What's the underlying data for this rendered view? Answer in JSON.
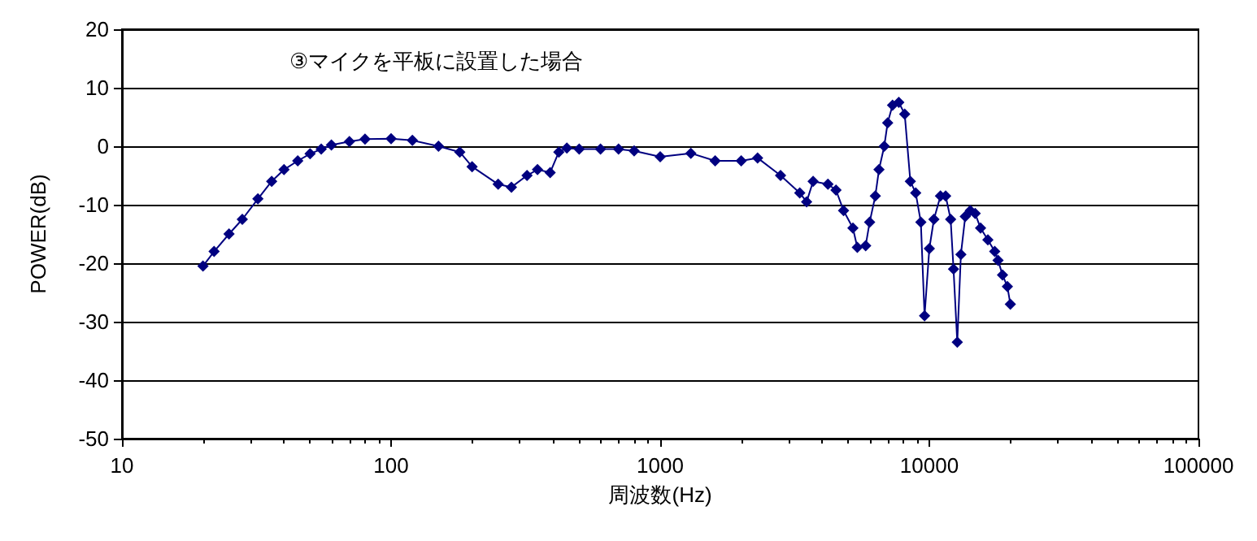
{
  "chart_data": {
    "type": "line",
    "title": "③マイクを平板に設置した場合",
    "xlabel": "周波数(Hz)",
    "ylabel": "POWER(dB)",
    "log": "x",
    "xlim": [
      10,
      100000
    ],
    "xticks": [
      10,
      100,
      1000,
      10000,
      100000
    ],
    "ylim": [
      -50,
      20
    ],
    "yticks": [
      -50,
      -40,
      -30,
      -20,
      -10,
      0,
      10,
      20
    ],
    "grid": "y",
    "marker": "diamond",
    "line_style": "solid",
    "series": [
      {
        "color": "#000080",
        "x": [
          20,
          22,
          25,
          28,
          32,
          36,
          40,
          45,
          50,
          55,
          60,
          70,
          80,
          100,
          120,
          150,
          180,
          200,
          250,
          280,
          320,
          350,
          390,
          420,
          450,
          500,
          600,
          700,
          800,
          1000,
          1300,
          1600,
          2000,
          2300,
          2800,
          3300,
          3500,
          3700,
          4200,
          4500,
          4800,
          5200,
          5400,
          5800,
          6000,
          6300,
          6500,
          6800,
          7000,
          7300,
          7700,
          8100,
          8500,
          8900,
          9300,
          9600,
          10000,
          10400,
          11000,
          11500,
          12000,
          12300,
          12700,
          13100,
          13600,
          14200,
          14800,
          15500,
          16500,
          17500,
          18000,
          18700,
          19500,
          20000
        ],
        "values": [
          -20.5,
          -18,
          -15,
          -12.5,
          -9,
          -6,
          -4,
          -2.5,
          -1.3,
          -0.5,
          0.2,
          0.8,
          1.2,
          1.3,
          1,
          0,
          -1,
          -3.5,
          -6.5,
          -7,
          -5,
          -4,
          -4.5,
          -1,
          -0.3,
          -0.5,
          -0.5,
          -0.5,
          -0.8,
          -1.8,
          -1.2,
          -2.5,
          -2.5,
          -2,
          -5,
          -8,
          -9.5,
          -6,
          -6.5,
          -7.5,
          -11,
          -14,
          -17.3,
          -17,
          -13,
          -8.5,
          -4,
          0,
          4,
          7,
          7.5,
          5.5,
          -6,
          -8,
          -13,
          -29,
          -17.5,
          -12.5,
          -8.5,
          -8.5,
          -12.5,
          -21,
          -33.5,
          -18.5,
          -12,
          -11,
          -11.5,
          -14,
          -16,
          -18,
          -19.5,
          -22,
          -24,
          -27
        ]
      }
    ]
  }
}
